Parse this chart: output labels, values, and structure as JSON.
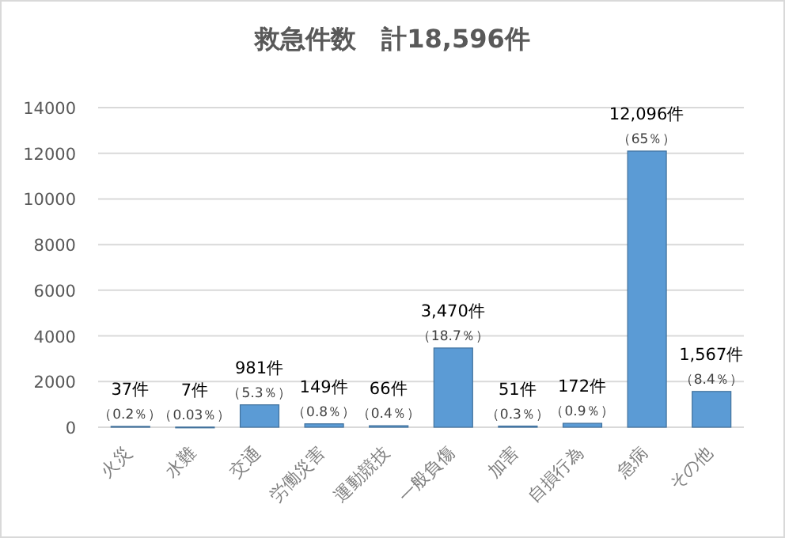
{
  "chart_data": {
    "type": "bar",
    "title": "救急件数　計18,596件",
    "categories": [
      "火災",
      "水難",
      "交通",
      "労働災害",
      "運動競技",
      "一般負傷",
      "加害",
      "自損行為",
      "急病",
      "その他"
    ],
    "values": [
      37,
      7,
      981,
      149,
      66,
      3470,
      51,
      172,
      12096,
      1567
    ],
    "value_labels": [
      "37件",
      "7件",
      "981件",
      "149件",
      "66件",
      "3,470件",
      "51件",
      "172件",
      "12,096件",
      "1,567件"
    ],
    "annotations": [
      {
        "text": "（0.2％）",
        "x": "火災",
        "y": 37
      },
      {
        "text": "（0.03％）",
        "x": "水難",
        "y": 7
      },
      {
        "text": "（5.3％）",
        "x": "交通",
        "y": 981
      },
      {
        "text": "（0.8％）",
        "x": "労働災害",
        "y": 149
      },
      {
        "text": "（0.4％）",
        "x": "運動競技",
        "y": 66
      },
      {
        "text": "（18.7％）",
        "x": "一般負傷",
        "y": 3470
      },
      {
        "text": "（0.3％）",
        "x": "加害",
        "y": 51
      },
      {
        "text": "（0.9％）",
        "x": "自損行為",
        "y": 172
      },
      {
        "text": "（65％）",
        "x": "急病",
        "y": 12096
      },
      {
        "text": "（8.4％）",
        "x": "その他",
        "y": 1567
      }
    ],
    "color": "#5b9bd5",
    "ylim": [
      0,
      14000
    ],
    "yticks": [
      0,
      2000,
      4000,
      6000,
      8000,
      10000,
      12000,
      14000
    ],
    "grid": "y"
  }
}
